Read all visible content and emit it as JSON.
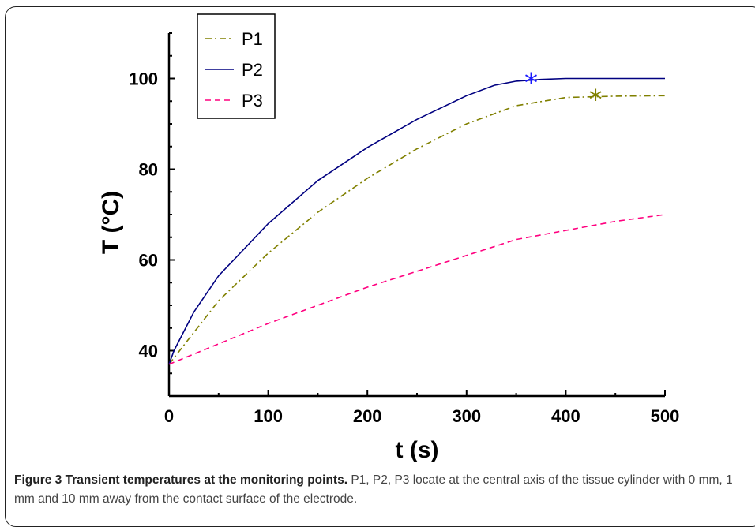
{
  "chart_data": {
    "type": "line",
    "xlabel": "t (s)",
    "ylabel": "T (°C)",
    "xlim": [
      0,
      500
    ],
    "ylim": [
      30,
      110
    ],
    "xticks": [
      "0",
      "100",
      "200",
      "300",
      "400",
      "500"
    ],
    "yticks": [
      "40",
      "60",
      "80",
      "100"
    ],
    "grid": false,
    "legend_position": "top-left",
    "series": [
      {
        "name": "P1",
        "color": "#808000",
        "style": "dash-dot",
        "x": [
          0,
          25,
          50,
          100,
          150,
          200,
          250,
          300,
          350,
          400,
          450,
          500
        ],
        "y": [
          37,
          44,
          51,
          61.5,
          70.5,
          78,
          84.5,
          90,
          94,
          95.8,
          96.1,
          96.2
        ]
      },
      {
        "name": "P2",
        "color": "#000080",
        "style": "solid",
        "x": [
          0,
          5,
          25,
          50,
          100,
          150,
          200,
          250,
          300,
          328,
          350,
          375,
          400,
          450,
          500
        ],
        "y": [
          37,
          40,
          48.5,
          56.5,
          68,
          77.5,
          84.8,
          91,
          96.2,
          98.5,
          99.4,
          99.8,
          100,
          100,
          100
        ]
      },
      {
        "name": "P3",
        "color": "#ff007f",
        "style": "dashed",
        "x": [
          0,
          50,
          100,
          150,
          200,
          250,
          300,
          350,
          400,
          450,
          500
        ],
        "y": [
          37,
          41.5,
          46,
          50,
          54,
          57.5,
          61,
          64.5,
          66.5,
          68.5,
          70
        ]
      }
    ],
    "markers": [
      {
        "symbol": "*",
        "x": 365,
        "y": 99.5,
        "color": "#1a1aff"
      },
      {
        "symbol": "*",
        "x": 430,
        "y": 95.8,
        "color": "#808000"
      }
    ]
  },
  "caption": {
    "lead": "Figure 3 Transient temperatures at the monitoring points.",
    "text": " P1, P2, P3 locate at the central axis of the tissue cylinder with 0 mm, 1 mm and 10 mm away from the contact surface of the electrode."
  }
}
